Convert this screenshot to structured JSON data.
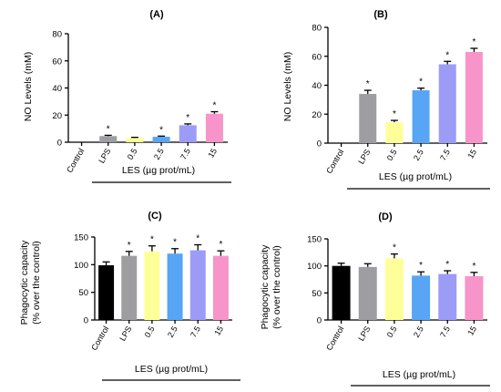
{
  "chart_data": [
    {
      "type": "bar",
      "panel_label": "(A)",
      "ylabel": "NO Levels (mM)",
      "xlabel": "LES (µg prot/mL)",
      "ylim": [
        0,
        80
      ],
      "yticks": [
        0,
        20,
        40,
        60,
        80
      ],
      "categories": [
        "Control",
        "LPS",
        "0.5",
        "2.5",
        "7.5",
        "15"
      ],
      "values": [
        0,
        4.5,
        3.2,
        4.0,
        12.5,
        21.0
      ],
      "errors": [
        0,
        0.6,
        0.4,
        0.5,
        1.0,
        1.5
      ],
      "significant": [
        false,
        true,
        false,
        true,
        true,
        true
      ],
      "colors": [
        "#000000",
        "#9e9ea2",
        "#ffff99",
        "#58a4f5",
        "#9c9cf7",
        "#f794c9"
      ]
    },
    {
      "type": "bar",
      "panel_label": "(B)",
      "ylabel": "NO Levels (mM)",
      "xlabel": "LES (µg prot/mL)",
      "ylim": [
        0,
        80
      ],
      "yticks": [
        0,
        20,
        40,
        60,
        80
      ],
      "categories": [
        "Control",
        "LPS",
        "0.5",
        "2.5",
        "7.5",
        "15"
      ],
      "values": [
        0,
        34.0,
        14.5,
        36.5,
        54.5,
        63.0
      ],
      "errors": [
        0,
        2.5,
        1.2,
        1.5,
        2.0,
        2.5
      ],
      "significant": [
        false,
        true,
        true,
        true,
        true,
        true
      ],
      "colors": [
        "#000000",
        "#9e9ea2",
        "#ffff99",
        "#58a4f5",
        "#9c9cf7",
        "#f794c9"
      ]
    },
    {
      "type": "bar",
      "panel_label": "(C)",
      "ylabel": "Phagocytic capacity\n(% over the control)",
      "xlabel": "LES (µg prot/mL)",
      "ylim": [
        0,
        150
      ],
      "yticks": [
        0,
        50,
        100,
        150
      ],
      "categories": [
        "Control",
        "LPS",
        "0.5",
        "2.5",
        "7.5",
        "15"
      ],
      "values": [
        99,
        116,
        124,
        120,
        126,
        116
      ],
      "errors": [
        6,
        8,
        10,
        9,
        10,
        9
      ],
      "significant": [
        false,
        true,
        true,
        true,
        true,
        true
      ],
      "colors": [
        "#000000",
        "#9e9ea2",
        "#ffff99",
        "#58a4f5",
        "#9c9cf7",
        "#f794c9"
      ]
    },
    {
      "type": "bar",
      "panel_label": "(D)",
      "ylabel": "Phagocytic capacity\n(% over the control)",
      "xlabel": "LES (µg prot/mL)",
      "ylim": [
        0,
        150
      ],
      "yticks": [
        0,
        50,
        100,
        150
      ],
      "categories": [
        "Control",
        "LPS",
        "0.5",
        "2.5",
        "7.5",
        "15"
      ],
      "values": [
        100,
        98,
        114,
        82,
        85,
        81
      ],
      "errors": [
        5,
        6,
        8,
        7,
        6,
        7
      ],
      "significant": [
        false,
        false,
        true,
        true,
        true,
        true
      ],
      "colors": [
        "#000000",
        "#9e9ea2",
        "#ffff99",
        "#58a4f5",
        "#9c9cf7",
        "#f794c9"
      ]
    }
  ],
  "significance_marker": "*"
}
